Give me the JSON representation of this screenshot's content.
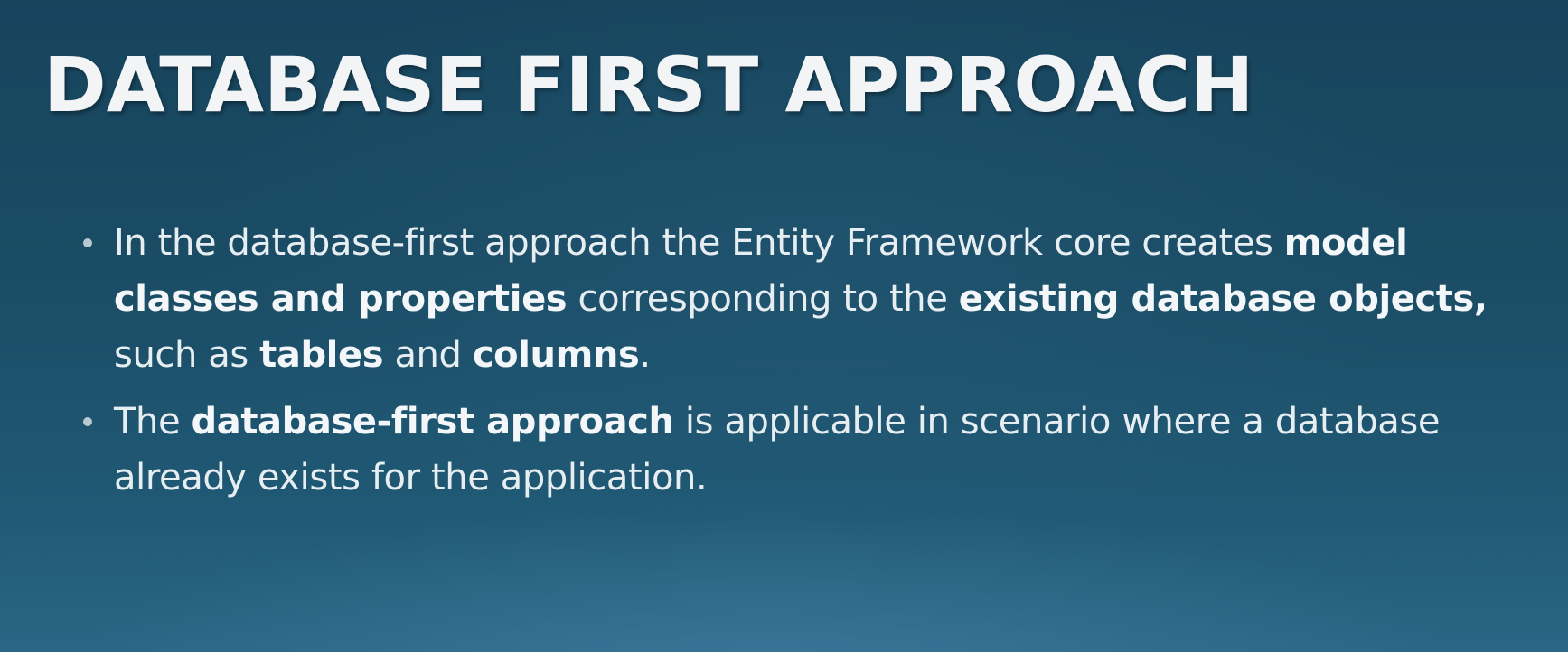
{
  "slide": {
    "title": "DATABASE FIRST APPROACH",
    "bullets": [
      {
        "segments": [
          {
            "text": "In the database-first approach the Entity Framework core creates ",
            "bold": false
          },
          {
            "text": "model classes and properties",
            "bold": true
          },
          {
            "text": " corresponding to the ",
            "bold": false
          },
          {
            "text": "existing database objects,",
            "bold": true
          },
          {
            "text": " such as ",
            "bold": false
          },
          {
            "text": "tables",
            "bold": true
          },
          {
            "text": " and ",
            "bold": false
          },
          {
            "text": "columns",
            "bold": true
          },
          {
            "text": ".",
            "bold": false
          }
        ]
      },
      {
        "segments": [
          {
            "text": "The ",
            "bold": false
          },
          {
            "text": "database-first approach",
            "bold": true
          },
          {
            "text": " is applicable in scenario where a database already exists for the application.",
            "bold": false
          }
        ]
      }
    ]
  },
  "colors": {
    "background_top": "#17445d",
    "background_bottom": "#2a6685",
    "title_text": "#f2f4f6",
    "body_text": "#e7eef2"
  }
}
